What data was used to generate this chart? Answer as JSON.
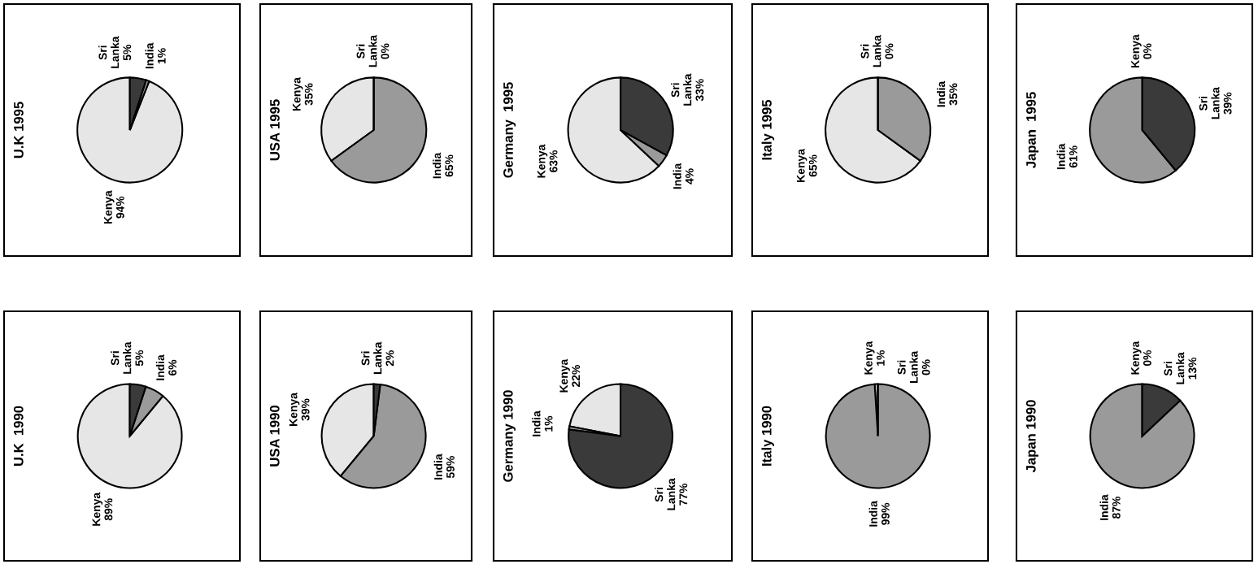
{
  "chart_data": [
    {
      "type": "pie",
      "title": "U.K 1995",
      "categories": [
        "Kenya",
        "India",
        "Sri Lanka"
      ],
      "values": [
        94,
        1,
        5
      ],
      "colors": [
        "#e6e6e6",
        "#9a9a9a",
        "#3a3a3a"
      ],
      "value_labels": [
        "94%",
        "1%",
        "5%"
      ]
    },
    {
      "type": "pie",
      "title": "USA 1995",
      "categories": [
        "Kenya",
        "India",
        "Sri Lanka"
      ],
      "values": [
        35,
        65,
        0
      ],
      "colors": [
        "#e6e6e6",
        "#9a9a9a",
        "#3a3a3a"
      ],
      "value_labels": [
        "35%",
        "65%",
        "0%"
      ]
    },
    {
      "type": "pie",
      "title": "Germany  1995",
      "categories": [
        "Kenya",
        "India",
        "Sri Lanka"
      ],
      "values": [
        63,
        4,
        33
      ],
      "colors": [
        "#e6e6e6",
        "#9a9a9a",
        "#3a3a3a"
      ],
      "value_labels": [
        "63%",
        "4%",
        "33%"
      ]
    },
    {
      "type": "pie",
      "title": "Italy 1995",
      "categories": [
        "Kenya",
        "India",
        "Sri Lanka"
      ],
      "values": [
        65,
        35,
        0
      ],
      "colors": [
        "#e6e6e6",
        "#9a9a9a",
        "#3a3a3a"
      ],
      "value_labels": [
        "65%",
        "35%",
        "0%"
      ]
    },
    {
      "type": "pie",
      "title": "Japan  1995",
      "categories": [
        "Kenya",
        "India",
        "Sri Lanka"
      ],
      "values": [
        0,
        61,
        39
      ],
      "colors": [
        "#e6e6e6",
        "#9a9a9a",
        "#3a3a3a"
      ],
      "value_labels": [
        "0%",
        "61%",
        "39%"
      ]
    },
    {
      "type": "pie",
      "title": "U.K  1990",
      "categories": [
        "Kenya",
        "India",
        "Sri Lanka"
      ],
      "values": [
        89,
        6,
        5
      ],
      "colors": [
        "#e6e6e6",
        "#9a9a9a",
        "#3a3a3a"
      ],
      "value_labels": [
        "89%",
        "6%",
        "5%"
      ]
    },
    {
      "type": "pie",
      "title": "USA 1990",
      "categories": [
        "Kenya",
        "India",
        "Sri Lanka"
      ],
      "values": [
        39,
        59,
        2
      ],
      "colors": [
        "#e6e6e6",
        "#9a9a9a",
        "#3a3a3a"
      ],
      "value_labels": [
        "39%",
        "59%",
        "2%"
      ]
    },
    {
      "type": "pie",
      "title": "Germany 1990",
      "categories": [
        "Kenya",
        "India",
        "Sri Lanka"
      ],
      "values": [
        22,
        1,
        77
      ],
      "colors": [
        "#e6e6e6",
        "#9a9a9a",
        "#3a3a3a"
      ],
      "value_labels": [
        "22%",
        "1%",
        "77%"
      ]
    },
    {
      "type": "pie",
      "title": "Italy 1990",
      "categories": [
        "Kenya",
        "India",
        "Sri Lanka"
      ],
      "values": [
        1,
        99,
        0
      ],
      "colors": [
        "#e6e6e6",
        "#9a9a9a",
        "#3a3a3a"
      ],
      "value_labels": [
        "1%",
        "99%",
        "0%"
      ]
    },
    {
      "type": "pie",
      "title": "Japan 1990",
      "categories": [
        "Kenya",
        "India",
        "Sri Lanka"
      ],
      "values": [
        0,
        87,
        13
      ],
      "colors": [
        "#e6e6e6",
        "#9a9a9a",
        "#3a3a3a"
      ],
      "value_labels": [
        "0%",
        "87%",
        "13%"
      ]
    }
  ]
}
